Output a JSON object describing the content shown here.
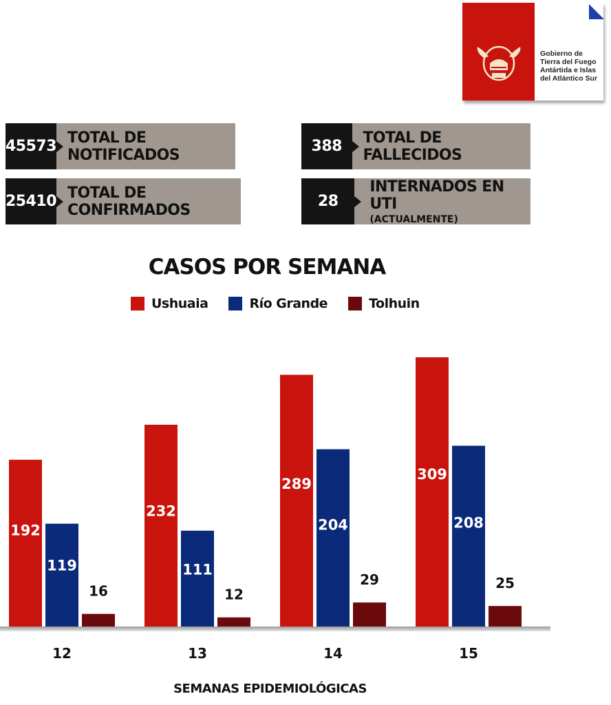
{
  "logo": {
    "lines": [
      "Gobierno de",
      "Tierra del Fuego",
      "Antártida e Islas",
      "del Atlántico Sur"
    ],
    "color": "#c9140d"
  },
  "stats": [
    {
      "value": "45573",
      "label": "TOTAL DE NOTIFICADOS"
    },
    {
      "value": "25410",
      "label": "TOTAL DE CONFIRMADOS"
    },
    {
      "value": "388",
      "label": "TOTAL DE FALLECIDOS"
    },
    {
      "value": "28",
      "label": "INTERNADOS EN UTI",
      "sublabel": "(ACTUALMENTE)"
    }
  ],
  "chart_data": {
    "type": "bar",
    "title": "CASOS POR SEMANA",
    "xlabel": "SEMANAS EPIDEMIOLÓGICAS",
    "ylabel": "",
    "categories": [
      "12",
      "13",
      "14",
      "15"
    ],
    "series": [
      {
        "name": "Ushuaia",
        "values": [
          192,
          232,
          289,
          309
        ],
        "color": "#c9140d"
      },
      {
        "name": "Río Grande",
        "values": [
          119,
          111,
          204,
          208
        ],
        "color": "#0b2a7a"
      },
      {
        "name": "Tolhuin",
        "values": [
          16,
          12,
          29,
          25
        ],
        "color": "#6b0a0c"
      }
    ],
    "legend": "top",
    "grid": false,
    "data_labels": true
  }
}
